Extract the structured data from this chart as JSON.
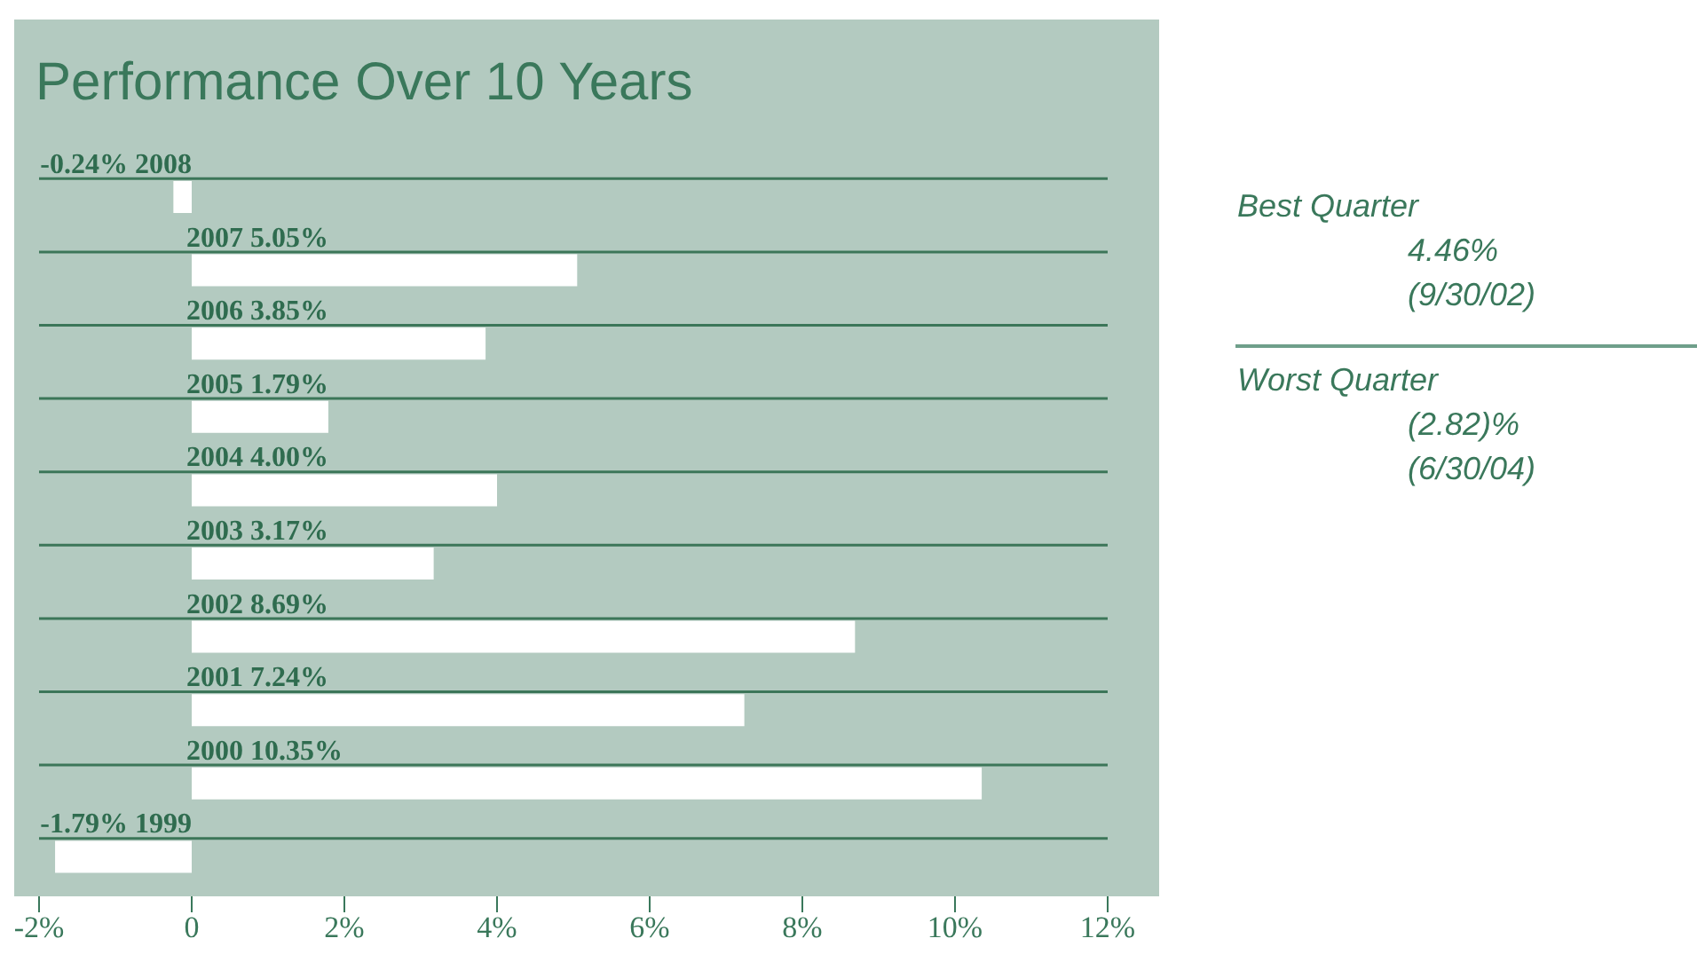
{
  "chart_data": {
    "type": "bar",
    "orientation": "horizontal",
    "title": "Performance Over 10 Years",
    "categories": [
      "2008",
      "2007",
      "2006",
      "2005",
      "2004",
      "2003",
      "2002",
      "2001",
      "2000",
      "1999"
    ],
    "values": [
      -0.24,
      5.05,
      3.85,
      1.79,
      4.0,
      3.17,
      8.69,
      7.24,
      10.35,
      -1.79
    ],
    "value_labels": [
      "-0.24%",
      "5.05%",
      "3.85%",
      "1.79%",
      "4.00%",
      "3.17%",
      "8.69%",
      "7.24%",
      "10.35%",
      "-1.79%"
    ],
    "color": "#ffffff",
    "xlim": [
      -2,
      12
    ],
    "xticks": [
      {
        "value": -2,
        "label": "-2%"
      },
      0,
      {
        "value": 2,
        "label": "2%"
      },
      {
        "value": 4,
        "label": "4%"
      },
      {
        "value": 6,
        "label": "6%"
      },
      {
        "value": 8,
        "label": "8%"
      },
      {
        "value": 10,
        "label": "10%"
      },
      {
        "value": 12,
        "label": "12%"
      }
    ],
    "ref_lines": [
      {
        "axis": "y",
        "value": "2008",
        "color": "#3c7659"
      },
      {
        "axis": "y",
        "value": "2007",
        "color": "#3c7659"
      },
      {
        "axis": "y",
        "value": "2006",
        "color": "#3c7659"
      },
      {
        "axis": "y",
        "value": "2005",
        "color": "#3c7659"
      },
      {
        "axis": "y",
        "value": "2004",
        "color": "#3c7659"
      },
      {
        "axis": "y",
        "value": "2003",
        "color": "#3c7659"
      },
      {
        "axis": "y",
        "value": "2002",
        "color": "#3c7659"
      },
      {
        "axis": "y",
        "value": "2001",
        "color": "#3c7659"
      },
      {
        "axis": "y",
        "value": "2000",
        "color": "#3c7659"
      },
      {
        "axis": "y",
        "value": "1999",
        "color": "#3c7659"
      }
    ],
    "tick_labels": "x",
    "annotations": [
      "Best Quarter",
      "4.46%",
      "(9/30/02)",
      "Worst Quarter",
      "(2.82)%",
      "(6/30/04)"
    ]
  }
}
